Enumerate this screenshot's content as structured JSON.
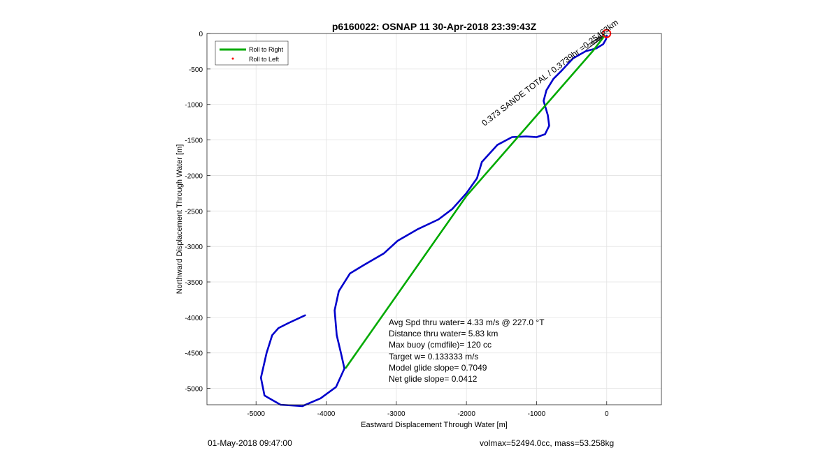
{
  "chart_data": {
    "type": "line",
    "title": "p6160022: OSNAP 11 30-Apr-2018 23:39:43Z",
    "xlabel": "Eastward Displacement Through Water [m]",
    "ylabel": "Northward Displacement Through Water [m]",
    "xlim": [
      -5700,
      780
    ],
    "ylim": [
      -5230,
      0
    ],
    "xticks": [
      -5000,
      -4000,
      -3000,
      -2000,
      -1000,
      0
    ],
    "yticks": [
      0,
      -500,
      -1000,
      -1500,
      -2000,
      -2500,
      -3000,
      -3500,
      -4000,
      -4500,
      -5000
    ],
    "grid": true,
    "legend_position": "top-left",
    "legend": [
      {
        "label": "Roll to Right",
        "color": "#00aa00",
        "marker": "line"
      },
      {
        "label": "Roll to Left",
        "color": "#ff0000",
        "marker": "dot"
      }
    ],
    "series": [
      {
        "color": "#0000cc",
        "x": [
          -4300,
          -4540,
          -4680,
          -4770,
          -4850,
          -4930,
          -4880,
          -4650,
          -4340,
          -4080,
          -3860,
          -3740,
          -3790,
          -3850,
          -3880,
          -3820,
          -3660,
          -3460,
          -3180,
          -2980,
          -2700,
          -2400,
          -2200,
          -2000,
          -1850,
          -1780,
          -1560,
          -1350,
          -1150,
          -1000,
          -880,
          -820,
          -840,
          -900,
          -860,
          -760,
          -640,
          -480,
          -300,
          -150,
          -50,
          -10,
          0
        ],
        "y": [
          -3970,
          -4080,
          -4150,
          -4250,
          -4500,
          -4850,
          -5100,
          -5230,
          -5250,
          -5140,
          -4980,
          -4720,
          -4500,
          -4250,
          -3900,
          -3630,
          -3380,
          -3260,
          -3100,
          -2920,
          -2760,
          -2620,
          -2470,
          -2250,
          -2040,
          -1810,
          -1570,
          -1460,
          -1450,
          -1460,
          -1420,
          -1300,
          -1150,
          -950,
          -800,
          -640,
          -520,
          -350,
          -250,
          -210,
          -150,
          -80,
          -30
        ]
      },
      {
        "color": "#00aa00",
        "x": [
          -3720,
          -2000,
          -200,
          -30
        ],
        "y": [
          -4710,
          -2290,
          -250,
          -30
        ]
      }
    ],
    "start_marker": {
      "x": 0,
      "y": 0,
      "color": "#ff0000"
    },
    "annotations": [
      {
        "text": "Avg Spd thru water=  4.33 m/s @ 227.0 °T"
      },
      {
        "text": "Distance thru water=  5.83 km"
      },
      {
        "text": "Max buoy (cmdfile)= 120 cc"
      },
      {
        "text": "Target w= 0.133333 m/s"
      },
      {
        "text": "Model glide slope= 0.7049"
      },
      {
        "text": "Net glide slope= 0.0412"
      }
    ],
    "rotated_label": "0.373 SANDE TOTAL / 0.3739hr =0.25463km"
  },
  "footer": {
    "timestamp": "01-May-2018 09:47:00",
    "params": "volmax=52494.0cc, mass=53.258kg"
  }
}
